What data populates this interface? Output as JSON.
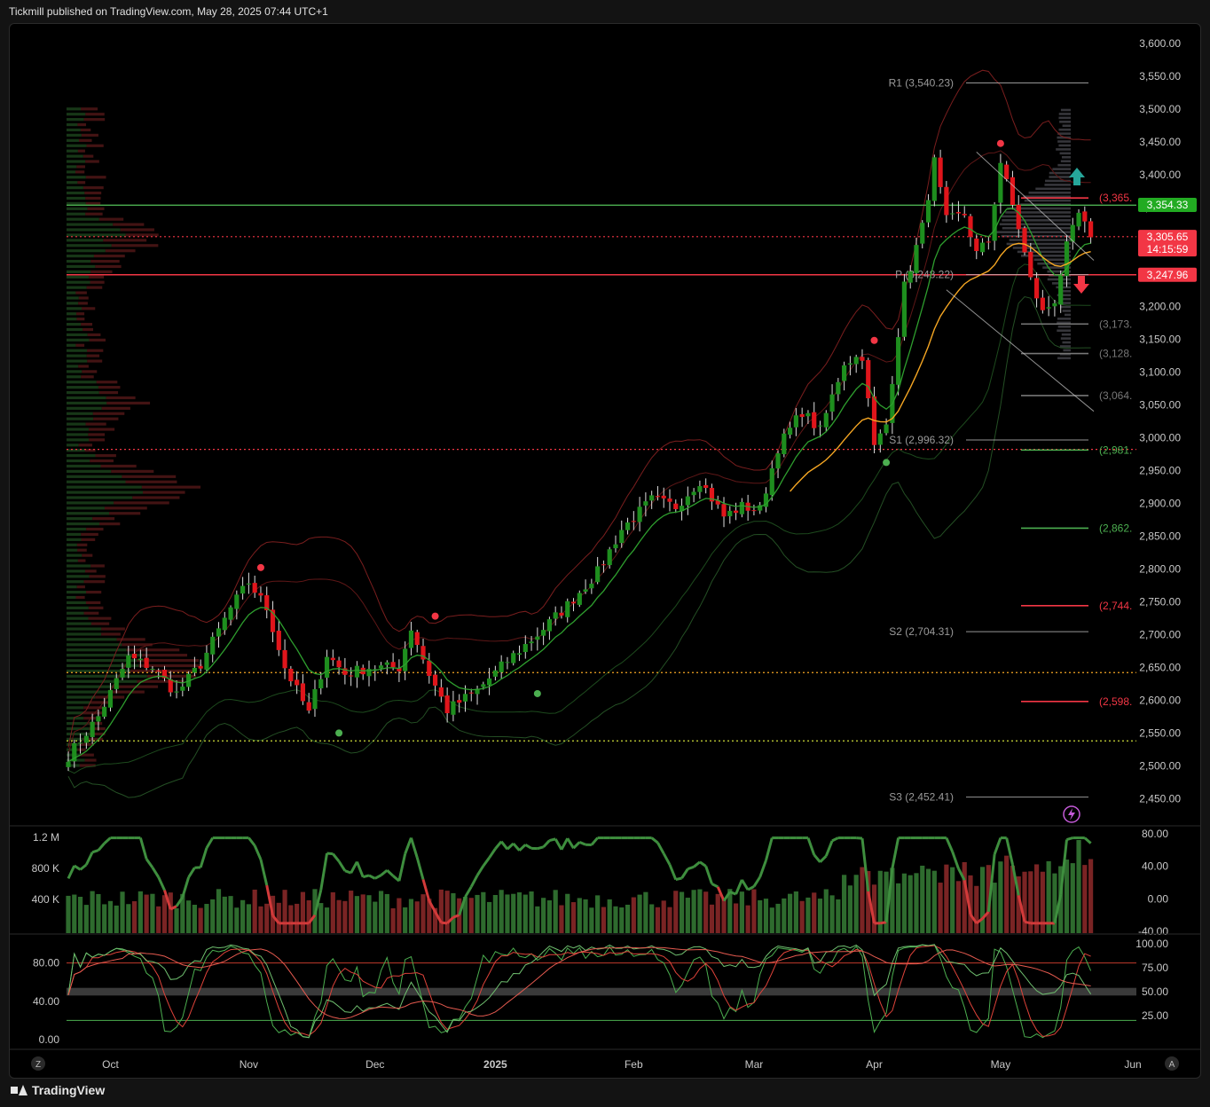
{
  "header": {
    "text": "Tickmill published on TradingView.com, May 28, 2025 07:44 UTC+1"
  },
  "footer": {
    "brand": "TradingView"
  },
  "colors": {
    "bull": "#1e8e1e",
    "bear": "#e0151b",
    "background": "#000000",
    "resistance_line": "#f23645",
    "support_line": "#4caf50",
    "ema_orange": "#f5a623",
    "ema_green": "#2e7d32",
    "band": "#7a1e1e",
    "price_up_label": "#22ab22",
    "price_down_label": "#f23645"
  },
  "chart_data": {
    "type": "candlestick",
    "timeframe_hint": "daily",
    "y_axis": {
      "ylim": [
        2410,
        3630
      ],
      "ticks": [
        "3,600.00",
        "3,550.00",
        "3,500.00",
        "3,450.00",
        "3,400.00",
        "3,350.00",
        "3,300.00",
        "3,250.00",
        "3,200.00",
        "3,150.00",
        "3,100.00",
        "3,050.00",
        "3,000.00",
        "2,950.00",
        "2,900.00",
        "2,850.00",
        "2,800.00",
        "2,750.00",
        "2,700.00",
        "2,650.00",
        "2,600.00",
        "2,550.00",
        "2,500.00",
        "2,450.00"
      ]
    },
    "x_axis": {
      "labels": [
        {
          "text": "Oct",
          "idx": 7
        },
        {
          "text": "Nov",
          "idx": 30
        },
        {
          "text": "Dec",
          "idx": 51
        },
        {
          "text": "2025",
          "idx": 71,
          "bold": true
        },
        {
          "text": "Feb",
          "idx": 94
        },
        {
          "text": "Mar",
          "idx": 114
        },
        {
          "text": "Apr",
          "idx": 134
        },
        {
          "text": "May",
          "idx": 155
        },
        {
          "text": "Jun",
          "idx": 177
        }
      ],
      "corner_left": "Z",
      "corner_right": "A",
      "bar_count_visible": 182
    },
    "price_tags": [
      {
        "text": "3,354.33",
        "value": 3354.33,
        "color": "#22ab22"
      },
      {
        "text": "3,305.65",
        "sub": "14:15:59",
        "value": 3305.65,
        "color": "#f23645"
      },
      {
        "text": "3,247.96",
        "value": 3247.96,
        "color": "#f23645"
      }
    ],
    "pivots": [
      {
        "label": "R1 (3,540.23)",
        "value": 3540.23
      },
      {
        "label": "P (3,248.22)",
        "value": 3248.22
      },
      {
        "label": "S1 (2,996.32)",
        "value": 2996.32
      },
      {
        "label": "S2 (2,704.31)",
        "value": 2704.31
      },
      {
        "label": "S3 (2,452.41)",
        "value": 2452.41
      }
    ],
    "targets": [
      {
        "label": "(3,365.",
        "value": 3365,
        "color": "#f23645"
      },
      {
        "label": "(3,173.",
        "value": 3173,
        "color": "#777777"
      },
      {
        "label": "(3,128.",
        "value": 3128,
        "color": "#777777"
      },
      {
        "label": "(3,064.",
        "value": 3064,
        "color": "#777777"
      },
      {
        "label": "(2,981.",
        "value": 2981,
        "color": "#4caf50"
      },
      {
        "label": "(2,862.",
        "value": 2862,
        "color": "#4caf50"
      },
      {
        "label": "(2,744.",
        "value": 2744,
        "color": "#f23645"
      },
      {
        "label": "(2,598.",
        "value": 2598,
        "color": "#f23645"
      }
    ],
    "horizontal_lines": [
      {
        "value": 3354,
        "color": "#4caf50",
        "style": "solid"
      },
      {
        "value": 3306,
        "color": "#f23645",
        "style": "dotted"
      },
      {
        "value": 3248,
        "color": "#f23645",
        "style": "solid"
      },
      {
        "value": 2982,
        "color": "#f23645",
        "style": "dotted"
      },
      {
        "value": 2642,
        "color": "#f5a623",
        "style": "dotted"
      },
      {
        "value": 2538,
        "color": "#cddc39",
        "style": "dotted"
      }
    ],
    "anchors": [
      {
        "i": 0,
        "c": 2515
      },
      {
        "i": 5,
        "c": 2575
      },
      {
        "i": 10,
        "c": 2665
      },
      {
        "i": 14,
        "c": 2650
      },
      {
        "i": 18,
        "c": 2610
      },
      {
        "i": 22,
        "c": 2655
      },
      {
        "i": 27,
        "c": 2740
      },
      {
        "i": 30,
        "c": 2780
      },
      {
        "i": 33,
        "c": 2740
      },
      {
        "i": 36,
        "c": 2650
      },
      {
        "i": 40,
        "c": 2580
      },
      {
        "i": 43,
        "c": 2670
      },
      {
        "i": 46,
        "c": 2640
      },
      {
        "i": 50,
        "c": 2650
      },
      {
        "i": 55,
        "c": 2650
      },
      {
        "i": 57,
        "c": 2710
      },
      {
        "i": 60,
        "c": 2640
      },
      {
        "i": 63,
        "c": 2585
      },
      {
        "i": 68,
        "c": 2615
      },
      {
        "i": 73,
        "c": 2660
      },
      {
        "i": 78,
        "c": 2700
      },
      {
        "i": 83,
        "c": 2745
      },
      {
        "i": 88,
        "c": 2795
      },
      {
        "i": 92,
        "c": 2860
      },
      {
        "i": 97,
        "c": 2905
      },
      {
        "i": 101,
        "c": 2895
      },
      {
        "i": 105,
        "c": 2935
      },
      {
        "i": 109,
        "c": 2880
      },
      {
        "i": 112,
        "c": 2895
      },
      {
        "i": 115,
        "c": 2890
      },
      {
        "i": 118,
        "c": 2985
      },
      {
        "i": 122,
        "c": 3040
      },
      {
        "i": 125,
        "c": 3010
      },
      {
        "i": 129,
        "c": 3115
      },
      {
        "i": 132,
        "c": 3125
      },
      {
        "i": 134,
        "c": 2985
      },
      {
        "i": 136,
        "c": 3020
      },
      {
        "i": 139,
        "c": 3230
      },
      {
        "i": 142,
        "c": 3320
      },
      {
        "i": 144,
        "c": 3420
      },
      {
        "i": 146,
        "c": 3330
      },
      {
        "i": 149,
        "c": 3340
      },
      {
        "i": 151,
        "c": 3280
      },
      {
        "i": 153,
        "c": 3300
      },
      {
        "i": 155,
        "c": 3420
      },
      {
        "i": 158,
        "c": 3320
      },
      {
        "i": 160,
        "c": 3240
      },
      {
        "i": 162,
        "c": 3190
      },
      {
        "i": 164,
        "c": 3210
      },
      {
        "i": 166,
        "c": 3290
      },
      {
        "i": 168,
        "c": 3340
      },
      {
        "i": 170,
        "c": 3305
      }
    ],
    "dots": [
      {
        "i": 32,
        "value": 2802,
        "color": "#f23645"
      },
      {
        "i": 45,
        "value": 2550,
        "color": "#4caf50"
      },
      {
        "i": 61,
        "value": 2728,
        "color": "#f23645"
      },
      {
        "i": 78,
        "value": 2610,
        "color": "#4caf50"
      },
      {
        "i": 134,
        "value": 3148,
        "color": "#f23645"
      },
      {
        "i": 136,
        "value": 2962,
        "color": "#4caf50"
      },
      {
        "i": 155,
        "value": 3448,
        "color": "#f23645"
      }
    ],
    "volume_panel": {
      "ticks": [
        "1.2 M",
        "800 K",
        "400 K"
      ],
      "osc_ticks": [
        "80.00",
        "40.00",
        "0.00",
        "-40.00"
      ]
    },
    "stoch_panel": {
      "left_ticks": [
        "80.00",
        "40.00",
        "0.00"
      ],
      "right_ticks": [
        "100.00",
        "75.00",
        "50.00",
        "25.00"
      ]
    }
  }
}
